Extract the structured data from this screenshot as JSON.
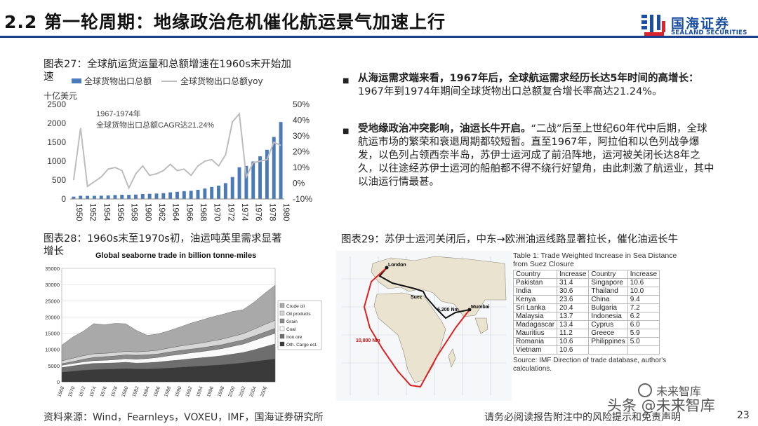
{
  "header": {
    "title": "2.2 第一轮周期：地缘政治危机催化航运景气加速上行",
    "logo_cn": "国海证券",
    "logo_en": "SEALAND SECURITIES"
  },
  "fig27": {
    "title_line1": "图表27：全球航运货运量和总额增速在1960s末开始加",
    "title_line2": "速",
    "legend_bar": "全球货物出口总额",
    "legend_line": "全球货物出口总额yoy",
    "y_unit": "十亿美元",
    "annotation_line1": "1967-1974年",
    "annotation_line2": "全球货物出口总额CAGR达21.24%"
  },
  "fig28": {
    "title_line1": "图表28：1960s末至1970s初，油运吨英里需求显著",
    "title_line2": "增长",
    "inner_title": "Global seaborne trade in billion tonne-miles"
  },
  "fig29": {
    "title": "图表29：苏伊士运河关闭后，中东→欧洲油运线路显著拉长，催化油运长牛",
    "map_labels": {
      "london": "London",
      "suez": "Suez",
      "mumbai": "Mumbai",
      "d1": "6,200 Nm",
      "d2": "10,800 Nm"
    },
    "table_title": "Table 1: Trade Weighted Increase in Sea Distance from Suez Closure",
    "table_headers": [
      "Country",
      "Increase",
      "Country",
      "Increase"
    ],
    "table_rows": [
      [
        "Pakistan",
        "31.4",
        "Singapore",
        "10.6"
      ],
      [
        "India",
        "30.6",
        "Thailand",
        "10.0"
      ],
      [
        "Kenya",
        "23.6",
        "China",
        "9.4"
      ],
      [
        "Sri Lanka",
        "20.4",
        "Bulgaria",
        "7.2"
      ],
      [
        "Malaysia",
        "13.7",
        "Indonesia",
        "6.2"
      ],
      [
        "Madagascar",
        "13.4",
        "Cyprus",
        "6.0"
      ],
      [
        "Mauritius",
        "11.2",
        "Greece",
        "5.9"
      ],
      [
        "Romania",
        "10.6",
        "Philippines",
        "5.0"
      ],
      [
        "Vietnam",
        "10.6",
        "",
        ""
      ]
    ],
    "table_source": "Source: IMF Direction of trade database, author's calculations."
  },
  "bullets": [
    {
      "bold": "从海运需求端来看，1967年后，全球航运需求经历长达5年时间的高增长：",
      "text": "1967年到1974年期间全球货物出口总额复合增长率高达21.24%。"
    },
    {
      "bold": "受地缘政治冲突影响，油运长牛开启。",
      "text": "“二战”后至上世纪60年代中后期，全球航运市场的繁荣和衰退周期都较短暂。直至1967年，阿拉伯和以色列战争爆发，以色列占领西奈半岛，苏伊士运河成了前沿阵地，运河被关闭长达8年之久，以往途经苏伊士运河的船舶都不得不绕行好望角，由此刺激了航运业，其中以油运行情最甚。"
    }
  ],
  "footer": {
    "source": "资料来源：Wind，Fearnleys，VOXEU，IMF，国海证券研究所",
    "disclaimer": "请务必阅读报告附注中的风险提示和免责声明",
    "page": "23",
    "watermark_top": "未来智库",
    "watermark_bottom": "头条 @未来智库"
  },
  "chart_data": [
    {
      "id": "fig27",
      "type": "bar+line",
      "categories": [
        "1950",
        "1951",
        "1952",
        "1953",
        "1954",
        "1955",
        "1956",
        "1957",
        "1958",
        "1959",
        "1960",
        "1961",
        "1962",
        "1963",
        "1964",
        "1965",
        "1966",
        "1967",
        "1968",
        "1969",
        "1970",
        "1971",
        "1972",
        "1973",
        "1974",
        "1975",
        "1976",
        "1977",
        "1978",
        "1979",
        "1980"
      ],
      "x_tick_labels": [
        "1950",
        "1952",
        "1954",
        "1956",
        "1958",
        "1960",
        "1962",
        "1964",
        "1966",
        "1968",
        "1970",
        "1972",
        "1974",
        "1976",
        "1978",
        "1980"
      ],
      "series": [
        {
          "name": "全球货物出口总额",
          "axis": "left",
          "type": "bar",
          "values": [
            62,
            84,
            82,
            83,
            86,
            94,
            104,
            112,
            109,
            116,
            130,
            136,
            144,
            156,
            175,
            190,
            207,
            217,
            242,
            276,
            318,
            354,
            419,
            581,
            838,
            874,
            991,
            1128,
            1300,
            1640,
            2034
          ]
        },
        {
          "name": "全球货物出口总额yoy",
          "axis": "right",
          "type": "line",
          "values": [
            2,
            35,
            -2,
            1,
            4,
            9,
            10,
            8,
            -3,
            6,
            11,
            5,
            6,
            8,
            12,
            8,
            9,
            5,
            11,
            14,
            15,
            11,
            18,
            39,
            44,
            4,
            13,
            14,
            15,
            26,
            24
          ]
        }
      ],
      "y_left_ticks": [
        0,
        500,
        1000,
        1500,
        2000,
        2500
      ],
      "y_right_ticks": [
        "-10%",
        "0%",
        "10%",
        "20%",
        "30%",
        "40%",
        "50%"
      ],
      "ylim_left": [
        0,
        2500
      ],
      "ylim_right": [
        -10,
        50
      ]
    },
    {
      "id": "fig28",
      "type": "area",
      "x_tick_labels": [
        "1968",
        "1970",
        "1972",
        "1974",
        "1976",
        "1978",
        "1980",
        "1982",
        "1984",
        "1986",
        "1988",
        "1990",
        "1992",
        "1994",
        "1996",
        "1998",
        "2000",
        "2002",
        "2004",
        "2006"
      ],
      "x": [
        1968,
        1970,
        1972,
        1974,
        1976,
        1978,
        1980,
        1982,
        1984,
        1986,
        1988,
        1990,
        1992,
        1994,
        1996,
        1998,
        2000,
        2002,
        2004,
        2006,
        2008
      ],
      "series": [
        {
          "name": "Oth. Cargo est.",
          "values": [
            3000,
            3300,
            3600,
            3800,
            3900,
            4000,
            4100,
            4000,
            4000,
            4100,
            4300,
            4500,
            4700,
            4900,
            5100,
            5300,
            5600,
            5900,
            6300,
            6700,
            7100
          ]
        },
        {
          "name": "Iron ore",
          "values": [
            1400,
            1600,
            1750,
            1900,
            1850,
            1850,
            1950,
            1800,
            1900,
            2000,
            2150,
            2250,
            2400,
            2500,
            2600,
            2750,
            2950,
            3150,
            3550,
            4100,
            4600
          ]
        },
        {
          "name": "Coal",
          "values": [
            700,
            750,
            800,
            850,
            900,
            1000,
            1100,
            1200,
            1300,
            1450,
            1600,
            1700,
            1800,
            1900,
            2050,
            2200,
            2400,
            2600,
            2900,
            3100,
            3300
          ]
        },
        {
          "name": "Grain",
          "values": [
            500,
            600,
            800,
            1000,
            1100,
            1150,
            1200,
            1200,
            1150,
            1050,
            1100,
            1200,
            1150,
            1150,
            1200,
            1200,
            1250,
            1300,
            1350,
            1400,
            1500
          ]
        },
        {
          "name": "Oil products",
          "values": [
            900,
            1000,
            1100,
            1100,
            1050,
            1050,
            1050,
            1050,
            1100,
            1150,
            1250,
            1350,
            1450,
            1500,
            1600,
            1700,
            1800,
            1900,
            2100,
            2350,
            2500
          ]
        },
        {
          "name": "Crude oil",
          "values": [
            4800,
            6500,
            7500,
            9300,
            8800,
            9000,
            8500,
            6600,
            4900,
            5000,
            5300,
            5800,
            6500,
            7000,
            7400,
            7600,
            7700,
            7400,
            8300,
            9600,
            10800
          ]
        }
      ],
      "y_ticks": [
        0,
        5000,
        10000,
        15000,
        20000,
        25000,
        30000,
        35000
      ],
      "ylim": [
        0,
        35000
      ]
    }
  ]
}
